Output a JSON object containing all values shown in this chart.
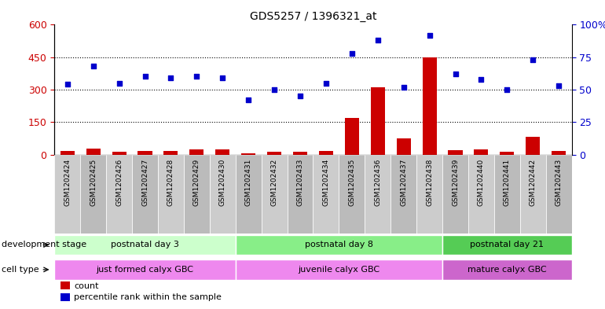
{
  "title": "GDS5257 / 1396321_at",
  "samples": [
    "GSM1202424",
    "GSM1202425",
    "GSM1202426",
    "GSM1202427",
    "GSM1202428",
    "GSM1202429",
    "GSM1202430",
    "GSM1202431",
    "GSM1202432",
    "GSM1202433",
    "GSM1202434",
    "GSM1202435",
    "GSM1202436",
    "GSM1202437",
    "GSM1202438",
    "GSM1202439",
    "GSM1202440",
    "GSM1202441",
    "GSM1202442",
    "GSM1202443"
  ],
  "count": [
    15,
    28,
    14,
    17,
    15,
    22,
    24,
    4,
    12,
    13,
    18,
    170,
    310,
    75,
    450,
    20,
    22,
    12,
    80,
    15
  ],
  "percentile": [
    54,
    68,
    55,
    60,
    59,
    60,
    59,
    42,
    50,
    45,
    55,
    78,
    88,
    52,
    92,
    62,
    58,
    50,
    73,
    53
  ],
  "left_ylim": [
    0,
    600
  ],
  "right_ylim": [
    0,
    100
  ],
  "left_yticks": [
    0,
    150,
    300,
    450,
    600
  ],
  "right_yticks": [
    0,
    25,
    50,
    75,
    100
  ],
  "bar_color": "#cc0000",
  "scatter_color": "#0000cc",
  "hgrid_vals": [
    150,
    300,
    450
  ],
  "dev_groups": [
    {
      "label": "postnatal day 3",
      "start": 0,
      "end": 6,
      "color": "#ccffcc"
    },
    {
      "label": "postnatal day 8",
      "start": 7,
      "end": 14,
      "color": "#88ee88"
    },
    {
      "label": "postnatal day 21",
      "start": 15,
      "end": 19,
      "color": "#55cc55"
    }
  ],
  "cell_groups": [
    {
      "label": "just formed calyx GBC",
      "start": 0,
      "end": 6,
      "color": "#ee88ee"
    },
    {
      "label": "juvenile calyx GBC",
      "start": 7,
      "end": 14,
      "color": "#ee88ee"
    },
    {
      "label": "mature calyx GBC",
      "start": 15,
      "end": 19,
      "color": "#cc66cc"
    }
  ],
  "dev_stage_label": "development stage",
  "cell_type_label": "cell type",
  "legend_count": "count",
  "legend_percentile": "percentile rank within the sample",
  "bar_width": 0.55,
  "tick_bg_color": "#cccccc",
  "tick_bg_color_alt": "#bbbbbb"
}
